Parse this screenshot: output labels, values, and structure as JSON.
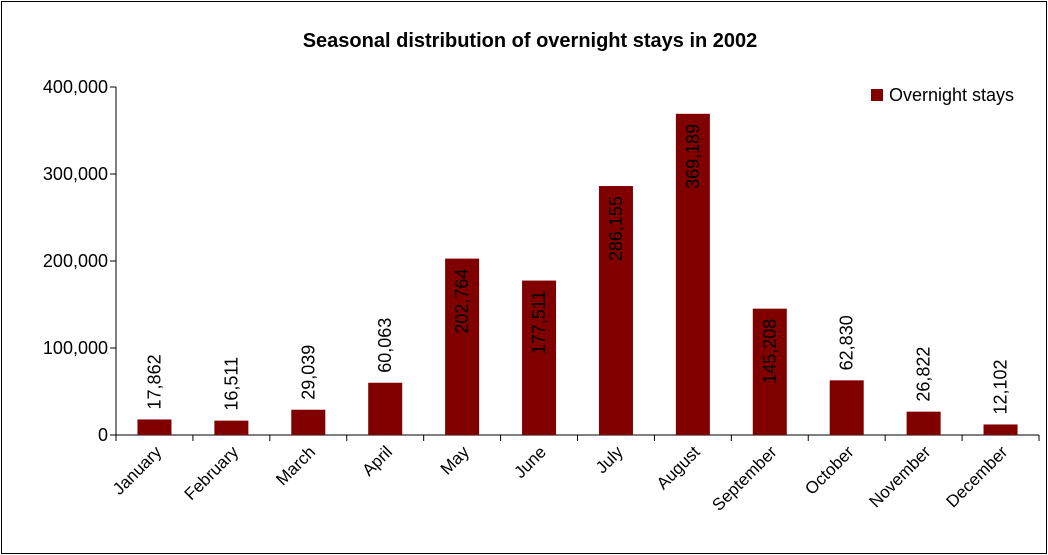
{
  "chart_data": {
    "type": "bar",
    "title": "Seasonal distribution of overnight stays in 2002",
    "xlabel": "",
    "ylabel": "",
    "ylim": [
      0,
      400000
    ],
    "yticks": [
      "0",
      "100,000",
      "200,000",
      "300,000",
      "400,000"
    ],
    "ytick_values": [
      0,
      100000,
      200000,
      300000,
      400000
    ],
    "categories": [
      "January",
      "February",
      "March",
      "April",
      "May",
      "June",
      "July",
      "August",
      "September",
      "October",
      "November",
      "December"
    ],
    "series": [
      {
        "name": "Overnight stays",
        "color": "#800000",
        "values": [
          17862,
          16511,
          29039,
          60063,
          202764,
          177511,
          286155,
          369189,
          145208,
          62830,
          26822,
          12102
        ],
        "labels": [
          "17,862",
          "16,511",
          "29,039",
          "60,063",
          "202,764",
          "177,511",
          "286,155",
          "369,189",
          "145,208",
          "62,830",
          "26,822",
          "12,102"
        ]
      }
    ],
    "grid": false,
    "legend_position": "top-right"
  }
}
